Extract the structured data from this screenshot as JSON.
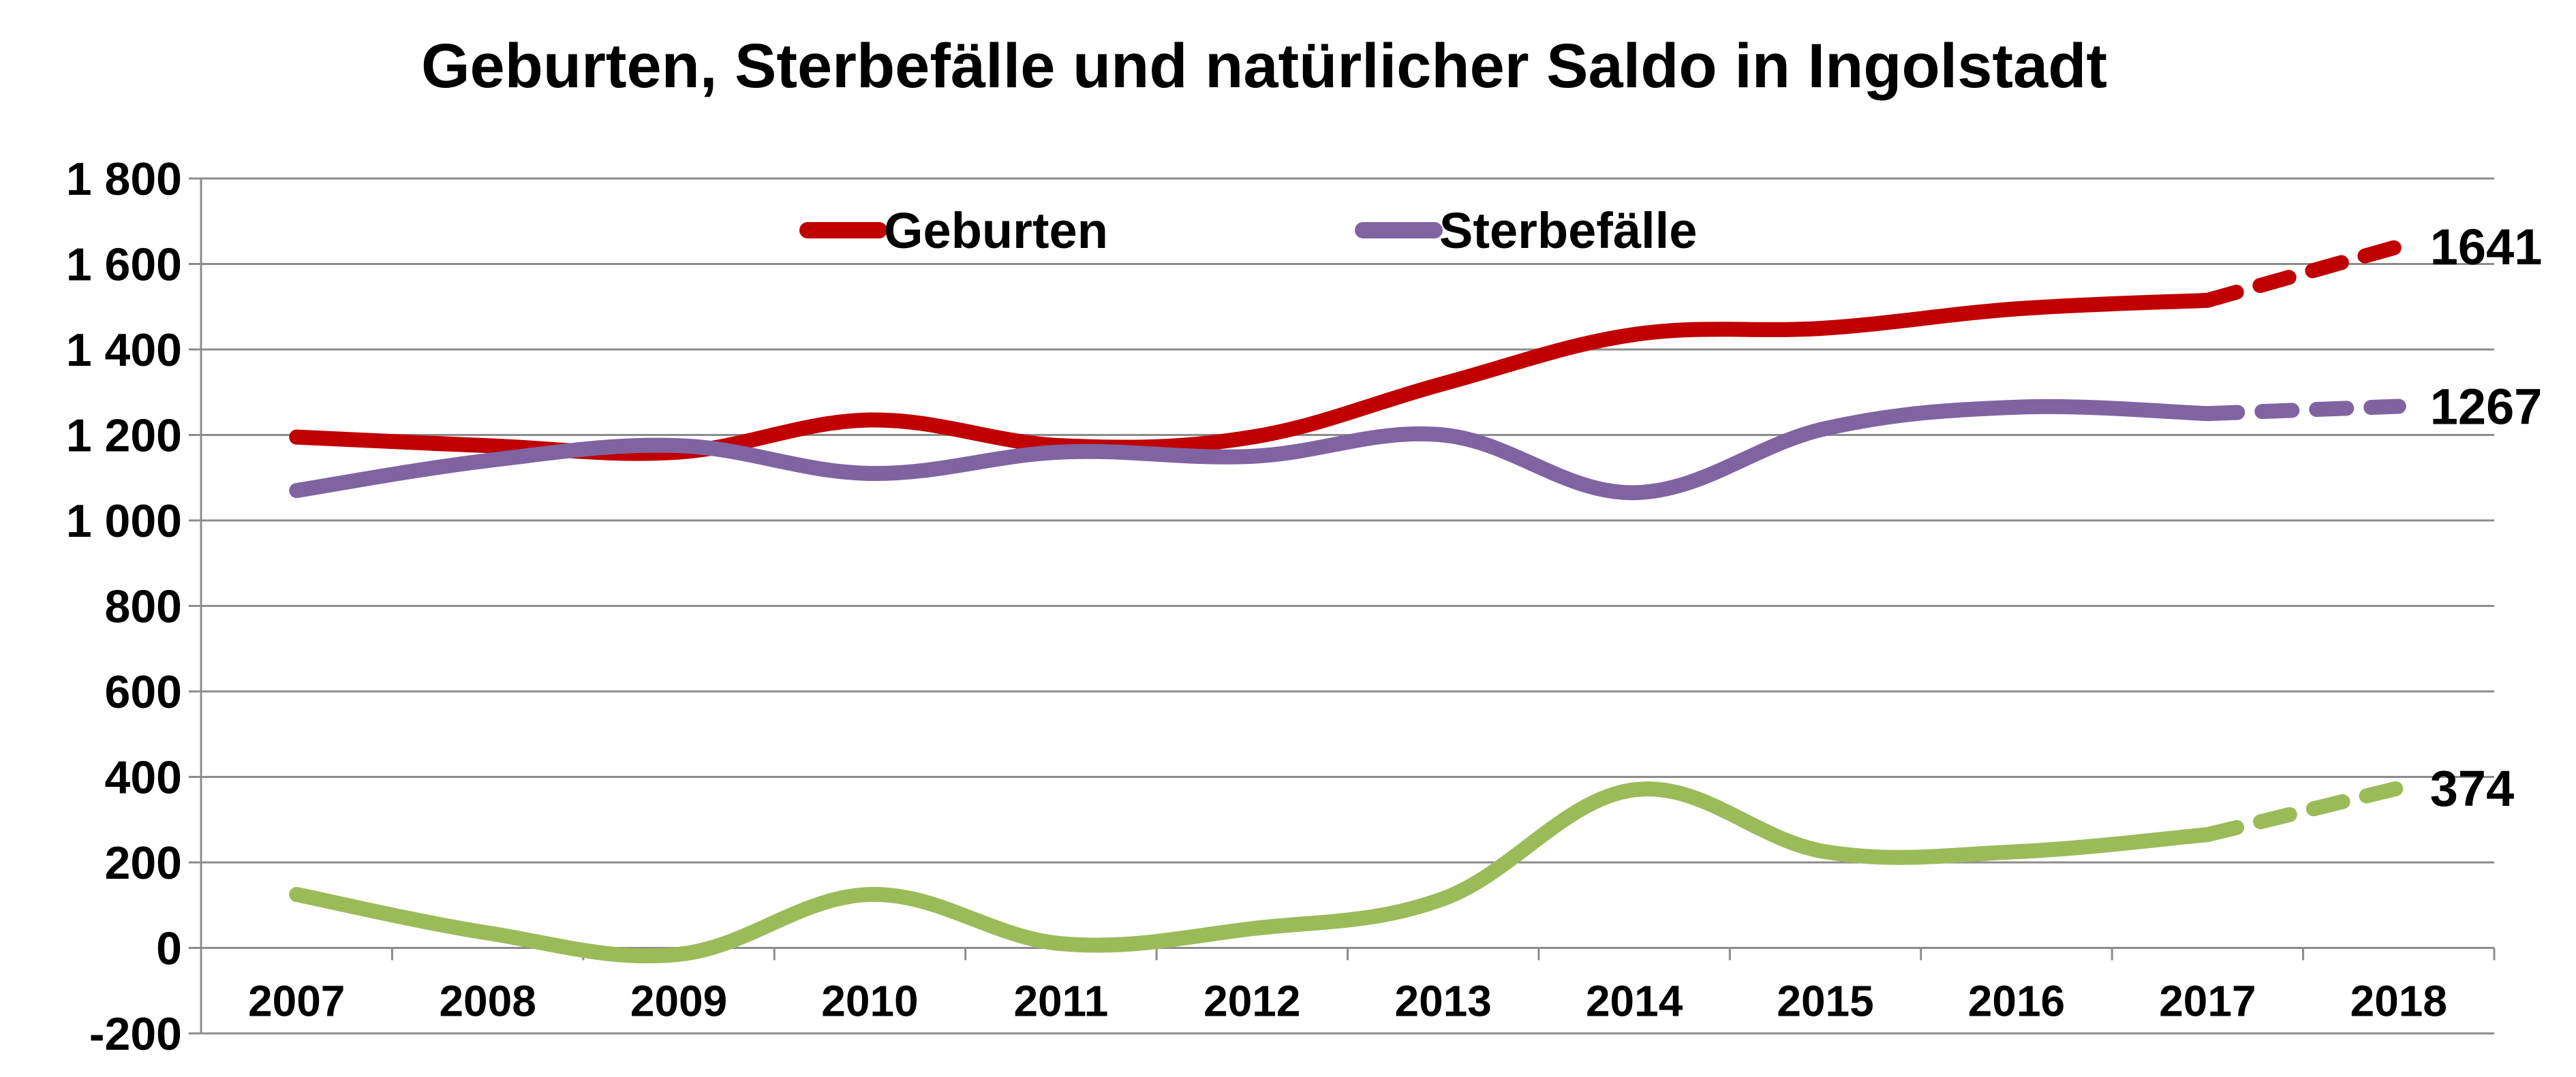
{
  "chart_data": {
    "type": "line",
    "title": "Geburten, Sterbefälle und natürlicher Saldo in Ingolstadt",
    "xlabel": "",
    "ylabel": "",
    "categories": [
      "2007",
      "2008",
      "2009",
      "2010",
      "2011",
      "2012",
      "2013",
      "2014",
      "2015",
      "2016",
      "2017",
      "2018"
    ],
    "ylim": [
      -200,
      1800
    ],
    "yticks": [
      -200,
      0,
      200,
      400,
      600,
      800,
      1000,
      1200,
      1400,
      1600,
      1800
    ],
    "ytick_labels": [
      "-200",
      "0",
      "200",
      "400",
      "600",
      "800",
      "1 000",
      "1 200",
      "1 400",
      "1 600",
      "1 800"
    ],
    "grid": true,
    "legend": "top-center",
    "dashed_from_index": 10,
    "series": [
      {
        "name": "Geburten",
        "color": "#C00000",
        "values": [
          1195,
          1175,
          1160,
          1235,
          1175,
          1195,
          1320,
          1435,
          1450,
          1495,
          1515,
          1641
        ],
        "end_label": "1641",
        "show_in_legend": true
      },
      {
        "name": "Sterbefälle",
        "color": "#8064A2",
        "values": [
          1070,
          1140,
          1175,
          1110,
          1160,
          1150,
          1200,
          1065,
          1215,
          1265,
          1250,
          1267
        ],
        "end_label": "1267",
        "show_in_legend": true
      },
      {
        "color": "#9BBB59",
        "values": [
          125,
          35,
          -15,
          125,
          10,
          45,
          115,
          370,
          225,
          225,
          265,
          374
        ],
        "end_label": "374",
        "show_in_legend": false
      }
    ]
  }
}
